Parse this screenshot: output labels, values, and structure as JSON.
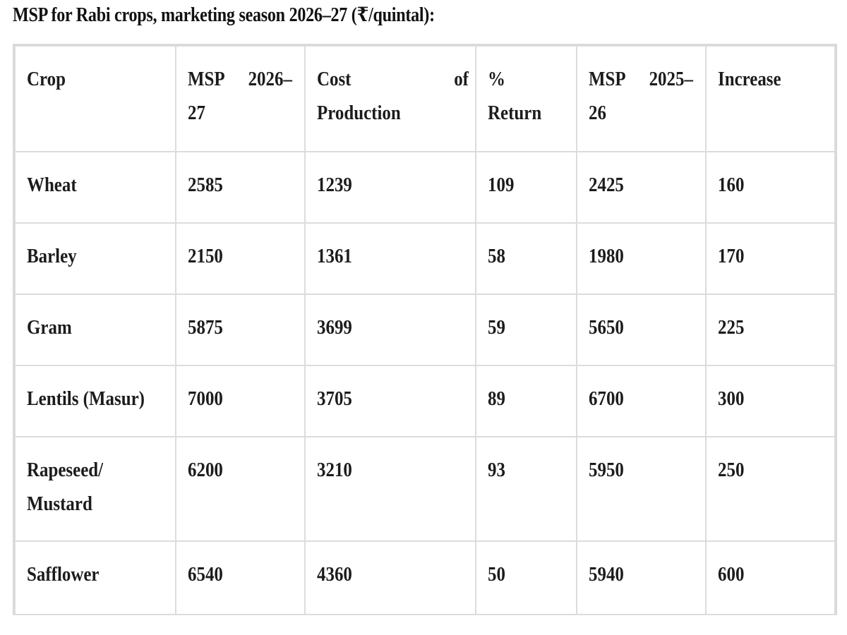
{
  "caption": "MSP for Rabi crops, marketing season 2026–27 (₹/quintal):",
  "table": {
    "headers": {
      "crop": "Crop",
      "msp_new_l1a": "MSP",
      "msp_new_l1b": "2026–",
      "msp_new_l2": "27",
      "cost_l1a": "Cost",
      "cost_l1b": "of",
      "cost_l2": "Production",
      "return_l1": "%",
      "return_l2": "Return",
      "msp_old_l1a": "MSP",
      "msp_old_l1b": "2025–",
      "msp_old_l2": "26",
      "increase": "Increase"
    },
    "rows": [
      {
        "crop": "Wheat",
        "crop_l2": "",
        "msp_new": "2585",
        "cost": "1239",
        "return": "109",
        "msp_old": "2425",
        "increase": "160"
      },
      {
        "crop": "Barley",
        "crop_l2": "",
        "msp_new": "2150",
        "cost": "1361",
        "return": "58",
        "msp_old": "1980",
        "increase": "170"
      },
      {
        "crop": "Gram",
        "crop_l2": "",
        "msp_new": "5875",
        "cost": "3699",
        "return": "59",
        "msp_old": "5650",
        "increase": "225"
      },
      {
        "crop": "Lentils (Masur)",
        "crop_l2": "",
        "msp_new": "7000",
        "cost": "3705",
        "return": "89",
        "msp_old": "6700",
        "increase": "300"
      },
      {
        "crop": "Rapeseed/",
        "crop_l2": "Mustard",
        "msp_new": "6200",
        "cost": "3210",
        "return": "93",
        "msp_old": "5950",
        "increase": "250"
      },
      {
        "crop": "Safflower",
        "crop_l2": "",
        "msp_new": "6540",
        "cost": "4360",
        "return": "50",
        "msp_old": "5940",
        "increase": "600"
      }
    ]
  }
}
